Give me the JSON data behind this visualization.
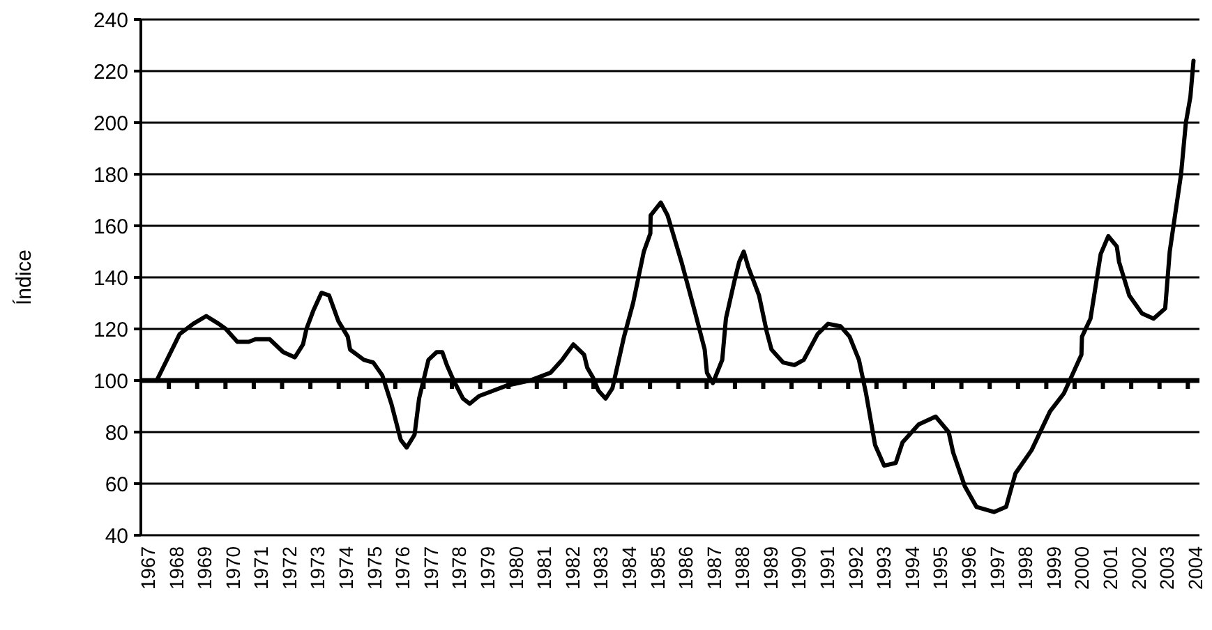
{
  "chart_data": {
    "type": "line",
    "ylabel": "Índice",
    "xlim": [
      1966.75,
      2004.15
    ],
    "ylim": [
      40,
      240
    ],
    "xticks": [
      1967,
      1968,
      1969,
      1970,
      1971,
      1972,
      1973,
      1974,
      1975,
      1976,
      1977,
      1978,
      1979,
      1980,
      1981,
      1982,
      1983,
      1984,
      1985,
      1986,
      1987,
      1988,
      1989,
      1990,
      1991,
      1992,
      1993,
      1994,
      1995,
      1996,
      1997,
      1998,
      1999,
      2000,
      2001,
      2002,
      2003,
      2004
    ],
    "yticks": [
      40,
      60,
      80,
      100,
      120,
      140,
      160,
      180,
      200,
      220,
      240
    ],
    "grid": "y",
    "marker": "none",
    "line_style": "solid",
    "ref_lines": [
      {
        "axis": "y",
        "value": 100,
        "color": "#000000"
      }
    ],
    "series": [
      {
        "color": "#000000",
        "x": [
          1967.31,
          1968.12,
          1968.6,
          1969.06,
          1969.5,
          1969.75,
          1970.16,
          1970.56,
          1970.8,
          1971.3,
          1971.78,
          1972.19,
          1972.48,
          1972.6,
          1972.84,
          1973.13,
          1973.4,
          1973.73,
          1974.06,
          1974.14,
          1974.63,
          1974.96,
          1975.28,
          1975.6,
          1975.93,
          1976.14,
          1976.42,
          1976.58,
          1976.91,
          1977.2,
          1977.4,
          1977.56,
          1977.8,
          1978.13,
          1978.37,
          1978.7,
          1979.19,
          1979.67,
          1980.49,
          1981.22,
          1981.63,
          1982.03,
          1982.41,
          1982.52,
          1982.73,
          1982.92,
          1983.17,
          1983.41,
          1983.82,
          1984.14,
          1984.52,
          1984.75,
          1984.76,
          1985.12,
          1985.36,
          1985.85,
          1986.34,
          1986.67,
          1986.75,
          1986.96,
          1987.29,
          1987.42,
          1987.73,
          1987.89,
          1988.05,
          1988.21,
          1988.59,
          1988.86,
          1989.03,
          1989.44,
          1989.84,
          1990.17,
          1990.66,
          1991.03,
          1991.47,
          1991.79,
          1992.12,
          1992.37,
          1992.69,
          1993.01,
          1993.42,
          1993.66,
          1994.23,
          1994.83,
          1995.29,
          1995.45,
          1995.86,
          1996.27,
          1996.89,
          1997.32,
          1997.65,
          1998.22,
          1998.87,
          1999.36,
          1999.98,
          2000.0,
          2000.3,
          2000.66,
          2000.93,
          2001.23,
          2001.31,
          2001.67,
          2002.12,
          2002.53,
          2002.94,
          2003.1,
          2003.5,
          2003.67,
          2003.83,
          2003.94
        ],
        "values": [
          100,
          118,
          122,
          125,
          122,
          120,
          115,
          115,
          116,
          116,
          111,
          109,
          114,
          120,
          127,
          134,
          133,
          123,
          117,
          112,
          108,
          107,
          102,
          91,
          77,
          74,
          79,
          93,
          108,
          111,
          111,
          106,
          100,
          93,
          91,
          94,
          96,
          98,
          100,
          103,
          108,
          114,
          110,
          105,
          101,
          96,
          93,
          97,
          117,
          130,
          150,
          157,
          164,
          169,
          164,
          146,
          126,
          112,
          103,
          99,
          108,
          124,
          139,
          146,
          150,
          144,
          133,
          119,
          112,
          107,
          106,
          108,
          118,
          122,
          121,
          117,
          108,
          95,
          75,
          67,
          68,
          76,
          83,
          86,
          80,
          72,
          59,
          51,
          49,
          51,
          64,
          73,
          88,
          95,
          110,
          117,
          124,
          149,
          156,
          152,
          146,
          133,
          126,
          124,
          128,
          150,
          180,
          200,
          210,
          224
        ]
      }
    ]
  }
}
